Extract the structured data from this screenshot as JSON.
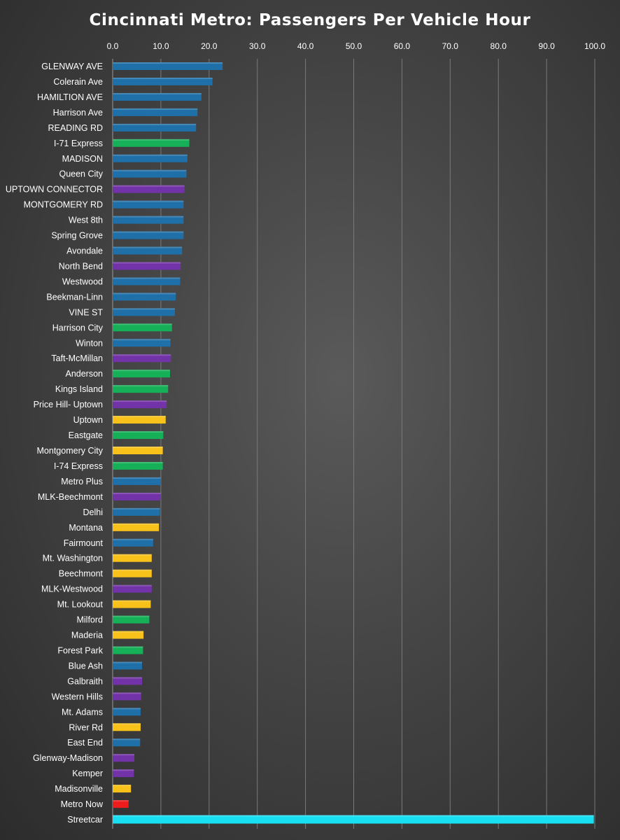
{
  "chart_data": {
    "type": "bar",
    "orientation": "horizontal",
    "title": "Cincinnati Metro: Passengers Per Vehicle Hour",
    "xlabel": "",
    "ylabel": "",
    "xlim": [
      0,
      100
    ],
    "x_ticks": [
      "0.0",
      "10.0",
      "20.0",
      "30.0",
      "40.0",
      "50.0",
      "60.0",
      "70.0",
      "80.0",
      "90.0",
      "100.0"
    ],
    "x_axis_position": "top",
    "grid": true,
    "legend": "none",
    "colors": {
      "blue": "#1f6fa8",
      "green": "#16b058",
      "purple": "#7333a8",
      "yellow": "#f8c21a",
      "red": "#ee1c1c",
      "cyan": "#18e0f2"
    },
    "categories": [
      "GLENWAY AVE",
      "Colerain Ave",
      "HAMILTION AVE",
      "Harrison Ave",
      "READING RD",
      "I-71 Express",
      "MADISON",
      "Queen City",
      "UPTOWN CONNECTOR",
      "MONTGOMERY RD",
      "West 8th",
      "Spring Grove",
      "Avondale",
      "North Bend",
      "Westwood",
      "Beekman-Linn",
      "VINE ST",
      "Harrison City",
      "Winton",
      "Taft-McMillan",
      "Anderson",
      "Kings Island",
      "Price Hill- Uptown",
      "Uptown",
      "Eastgate",
      "Montgomery City",
      "I-74 Express",
      "Metro Plus",
      "MLK-Beechmont",
      "Delhi",
      "Montana",
      "Fairmount",
      "Mt. Washington",
      "Beechmont",
      "MLK-Westwood",
      "Mt. Lookout",
      "Milford",
      "Maderia",
      "Forest Park",
      "Blue Ash",
      "Galbraith",
      "Western Hills",
      "Mt. Adams",
      "River Rd",
      "East End",
      "Glenway-Madison",
      "Kemper",
      "Madisonville",
      "Metro Now",
      "Streetcar"
    ],
    "values": [
      22.8,
      20.7,
      18.4,
      17.6,
      17.3,
      15.9,
      15.5,
      15.3,
      14.9,
      14.7,
      14.7,
      14.7,
      14.4,
      14.1,
      14.0,
      13.1,
      12.9,
      12.3,
      12.0,
      12.1,
      11.9,
      11.5,
      11.2,
      11.0,
      10.5,
      10.4,
      10.4,
      10.0,
      10.0,
      9.8,
      9.6,
      8.4,
      8.1,
      8.1,
      8.1,
      7.9,
      7.6,
      6.4,
      6.3,
      6.1,
      6.1,
      5.9,
      5.8,
      5.8,
      5.7,
      4.5,
      4.4,
      3.8,
      3.3,
      99.8
    ],
    "bar_colors": [
      "blue",
      "blue",
      "blue",
      "blue",
      "blue",
      "green",
      "blue",
      "blue",
      "purple",
      "blue",
      "blue",
      "blue",
      "blue",
      "purple",
      "blue",
      "blue",
      "blue",
      "green",
      "blue",
      "purple",
      "green",
      "green",
      "purple",
      "yellow",
      "green",
      "yellow",
      "green",
      "blue",
      "purple",
      "blue",
      "yellow",
      "blue",
      "yellow",
      "yellow",
      "purple",
      "yellow",
      "green",
      "yellow",
      "green",
      "blue",
      "purple",
      "purple",
      "blue",
      "yellow",
      "blue",
      "purple",
      "purple",
      "yellow",
      "red",
      "cyan"
    ]
  }
}
